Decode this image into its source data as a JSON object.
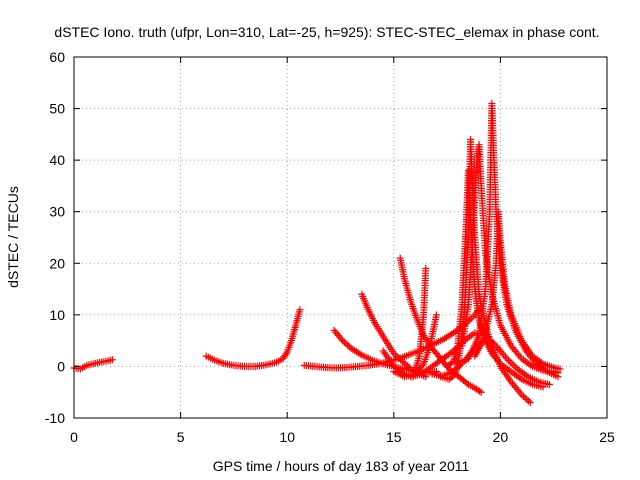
{
  "chart_data": {
    "type": "scatter",
    "title": "dSTEC Iono. truth (ufpr, Lon=310, Lat=-25, h=925): STEC-STEC_elemax in phase cont.",
    "xlabel": "GPS time / hours of day 183 of year 2011",
    "ylabel": "dSTEC  / TECUs",
    "xlim": [
      0,
      25
    ],
    "ylim": [
      -10,
      60
    ],
    "xticks": [
      0,
      5,
      10,
      15,
      20,
      25
    ],
    "yticks": [
      -10,
      0,
      10,
      20,
      30,
      40,
      50,
      60
    ],
    "grid": true,
    "marker": "+",
    "color": "#ff0000",
    "series": [
      {
        "x": [
          0.0,
          0.3,
          0.6,
          0.9,
          1.2,
          1.5,
          1.8
        ],
        "y": [
          -0.3,
          -0.5,
          0.2,
          0.5,
          0.8,
          1.0,
          1.3
        ]
      },
      {
        "x": [
          6.2,
          6.6,
          7.0,
          7.5,
          8.0,
          8.5,
          9.0,
          9.5,
          9.8,
          10.0,
          10.2,
          10.4,
          10.6
        ],
        "y": [
          2.0,
          1.2,
          0.6,
          0.2,
          0.0,
          0.0,
          0.3,
          0.8,
          1.5,
          2.8,
          5.0,
          8.0,
          11.0
        ]
      },
      {
        "x": [
          10.8,
          11.3,
          11.8,
          12.3,
          12.8,
          13.3,
          13.8,
          14.3,
          14.8,
          15.3,
          15.8,
          16.3,
          16.8,
          17.3,
          17.8,
          18.3,
          18.8,
          19.0
        ],
        "y": [
          0.2,
          0.0,
          -0.2,
          -0.3,
          -0.2,
          0.0,
          0.2,
          0.5,
          1.0,
          1.6,
          2.4,
          3.2,
          4.2,
          5.2,
          6.5,
          8.0,
          10.0,
          11.0
        ]
      },
      {
        "x": [
          12.2,
          12.6,
          13.0,
          13.5,
          14.0,
          14.5,
          15.0,
          15.5,
          16.0,
          16.5,
          17.0
        ],
        "y": [
          7.0,
          5.0,
          3.5,
          2.2,
          1.2,
          0.5,
          0.0,
          -0.5,
          -1.0,
          -1.2,
          -1.0
        ]
      },
      {
        "x": [
          13.5,
          13.8,
          14.1,
          14.4,
          14.7,
          15.0,
          15.4,
          15.8,
          16.2,
          16.5
        ],
        "y": [
          14.0,
          11.0,
          8.5,
          6.5,
          4.5,
          2.5,
          1.0,
          -0.5,
          -1.5,
          -2.0
        ]
      },
      {
        "x": [
          15.3,
          15.5,
          15.8,
          16.1,
          16.4,
          16.7,
          17.0,
          17.3,
          17.6,
          17.9,
          18.2,
          18.5,
          18.8,
          19.1
        ],
        "y": [
          21.0,
          17.0,
          12.5,
          9.0,
          6.0,
          4.0,
          2.5,
          1.0,
          -0.5,
          -1.5,
          -2.5,
          -3.5,
          -4.2,
          -5.0
        ]
      },
      {
        "x": [
          14.5,
          15.0,
          15.5,
          15.9,
          16.2,
          16.4,
          16.5
        ],
        "y": [
          3.0,
          0.0,
          -1.5,
          -2.0,
          2.0,
          10.0,
          19.0
        ]
      },
      {
        "x": [
          15.0,
          15.5,
          16.0,
          16.4,
          16.7,
          17.0
        ],
        "y": [
          -1.0,
          -2.0,
          -1.5,
          0.5,
          4.0,
          10.0
        ]
      },
      {
        "x": [
          16.8,
          17.2,
          17.6,
          17.9,
          18.1,
          18.3,
          18.5,
          18.6,
          18.8,
          19.0,
          19.3,
          19.6,
          20.0,
          20.5,
          21.0,
          21.4
        ],
        "y": [
          -1.0,
          -2.0,
          -2.5,
          -1.5,
          3.0,
          10.0,
          25.0,
          44.0,
          25.0,
          14.0,
          8.0,
          4.0,
          0.0,
          -3.0,
          -5.5,
          -7.0
        ]
      },
      {
        "x": [
          17.5,
          17.8,
          18.0,
          18.2,
          18.4,
          18.5,
          18.6,
          18.8,
          19.0,
          19.3,
          19.6,
          20.0,
          20.5,
          21.0,
          21.5,
          22.0
        ],
        "y": [
          0.0,
          1.0,
          4.0,
          12.0,
          28.0,
          38.0,
          28.0,
          15.0,
          9.0,
          5.0,
          2.5,
          0.5,
          -1.0,
          -2.5,
          -3.5,
          -4.0
        ]
      },
      {
        "x": [
          18.2,
          18.5,
          18.7,
          18.9,
          19.0,
          19.1,
          19.3,
          19.6,
          20.0,
          20.5,
          21.0,
          21.5,
          22.0,
          22.5,
          22.7
        ],
        "y": [
          4.0,
          12.0,
          25.0,
          40.0,
          43.0,
          35.0,
          22.0,
          14.0,
          8.0,
          4.0,
          1.5,
          0.0,
          -0.8,
          -1.0,
          -1.2
        ]
      },
      {
        "x": [
          18.0,
          18.5,
          19.0,
          19.3,
          19.5,
          19.6,
          19.7,
          19.8,
          20.0,
          20.3,
          20.7,
          21.2,
          21.7,
          22.2,
          22.7
        ],
        "y": [
          0.5,
          1.5,
          6.0,
          15.0,
          30.0,
          51.0,
          40.0,
          30.0,
          20.0,
          12.0,
          7.0,
          3.0,
          0.5,
          -1.0,
          -2.0
        ]
      },
      {
        "x": [
          18.8,
          19.2,
          19.6,
          19.8,
          19.9,
          20.0,
          20.2,
          20.5,
          21.0,
          21.5,
          22.0,
          22.5,
          22.8
        ],
        "y": [
          2.0,
          5.0,
          12.0,
          20.0,
          30.0,
          24.0,
          16.0,
          10.0,
          5.0,
          2.0,
          0.5,
          -0.2,
          -0.5
        ]
      },
      {
        "x": [
          15.8,
          16.3,
          16.8,
          17.3,
          17.8,
          18.3,
          18.8,
          19.3,
          19.8,
          20.3,
          20.8,
          21.3,
          21.8,
          22.3
        ],
        "y": [
          -2.0,
          -1.5,
          0.0,
          1.5,
          3.0,
          5.0,
          6.5,
          6.0,
          4.0,
          1.5,
          -0.5,
          -2.0,
          -3.0,
          -3.5
        ]
      },
      {
        "x": [
          16.8,
          17.3,
          17.8,
          18.3,
          18.8,
          19.3
        ],
        "y": [
          -1.5,
          -1.8,
          -1.0,
          1.0,
          3.5,
          5.5
        ]
      }
    ]
  }
}
